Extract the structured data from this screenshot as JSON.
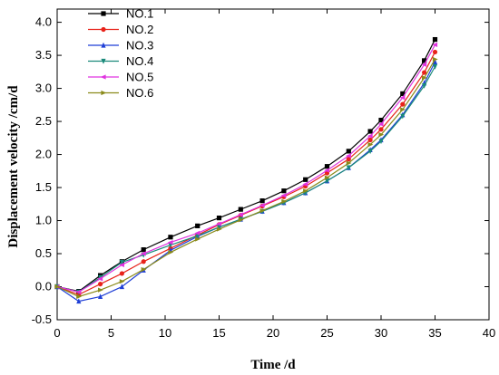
{
  "chart_data": {
    "type": "line",
    "xlabel": "Time /d",
    "ylabel": "Displacement velocity /cm/d",
    "xlim": [
      0,
      40
    ],
    "ylim": [
      -0.5,
      4.2
    ],
    "xticks": [
      0,
      5,
      10,
      15,
      20,
      25,
      30,
      35,
      40
    ],
    "yticks": [
      -0.5,
      0.0,
      0.5,
      1.0,
      1.5,
      2.0,
      2.5,
      3.0,
      3.5,
      4.0
    ],
    "xtick_labels": [
      "0",
      "5",
      "10",
      "15",
      "20",
      "25",
      "30",
      "35",
      "40"
    ],
    "ytick_labels": [
      "-0.5",
      "0.0",
      "0.5",
      "1.0",
      "1.5",
      "2.0",
      "2.5",
      "3.0",
      "3.5",
      "4.0"
    ],
    "grid": false,
    "legend_position": "top-left",
    "x": [
      0,
      2,
      4,
      6,
      8,
      10.5,
      13,
      15,
      17,
      19,
      21,
      23,
      25,
      27,
      29,
      30,
      32,
      34,
      35
    ],
    "series": [
      {
        "name": "NO.1",
        "color": "#000000",
        "marker": "square",
        "values": [
          0.0,
          -0.07,
          0.17,
          0.38,
          0.56,
          0.75,
          0.92,
          1.04,
          1.17,
          1.3,
          1.45,
          1.62,
          1.82,
          2.05,
          2.35,
          2.52,
          2.92,
          3.42,
          3.74
        ]
      },
      {
        "name": "NO.2",
        "color": "#e8231a",
        "marker": "circle",
        "values": [
          0.0,
          -0.12,
          0.04,
          0.2,
          0.38,
          0.58,
          0.78,
          0.94,
          1.08,
          1.22,
          1.36,
          1.52,
          1.72,
          1.93,
          2.22,
          2.38,
          2.76,
          3.24,
          3.55
        ]
      },
      {
        "name": "NO.3",
        "color": "#1f3fd6",
        "marker": "triangle-up",
        "values": [
          0.0,
          -0.22,
          -0.15,
          0.0,
          0.25,
          0.55,
          0.76,
          0.9,
          1.02,
          1.14,
          1.27,
          1.42,
          1.6,
          1.8,
          2.07,
          2.22,
          2.6,
          3.08,
          3.4
        ]
      },
      {
        "name": "NO.4",
        "color": "#1a8a7a",
        "marker": "triangle-down",
        "values": [
          0.0,
          -0.08,
          0.14,
          0.37,
          0.48,
          0.63,
          0.77,
          0.9,
          1.02,
          1.14,
          1.27,
          1.42,
          1.6,
          1.8,
          2.05,
          2.2,
          2.58,
          3.04,
          3.33
        ]
      },
      {
        "name": "NO.5",
        "color": "#e033e0",
        "marker": "triangle-left",
        "values": [
          0.0,
          -0.08,
          0.12,
          0.33,
          0.5,
          0.67,
          0.81,
          0.95,
          1.09,
          1.23,
          1.38,
          1.55,
          1.76,
          1.98,
          2.28,
          2.46,
          2.86,
          3.36,
          3.66
        ]
      },
      {
        "name": "NO.6",
        "color": "#8a8a1a",
        "marker": "triangle-right",
        "values": [
          0.0,
          -0.15,
          -0.05,
          0.08,
          0.26,
          0.52,
          0.72,
          0.87,
          1.01,
          1.15,
          1.29,
          1.45,
          1.65,
          1.87,
          2.15,
          2.3,
          2.68,
          3.16,
          3.44
        ]
      }
    ]
  }
}
